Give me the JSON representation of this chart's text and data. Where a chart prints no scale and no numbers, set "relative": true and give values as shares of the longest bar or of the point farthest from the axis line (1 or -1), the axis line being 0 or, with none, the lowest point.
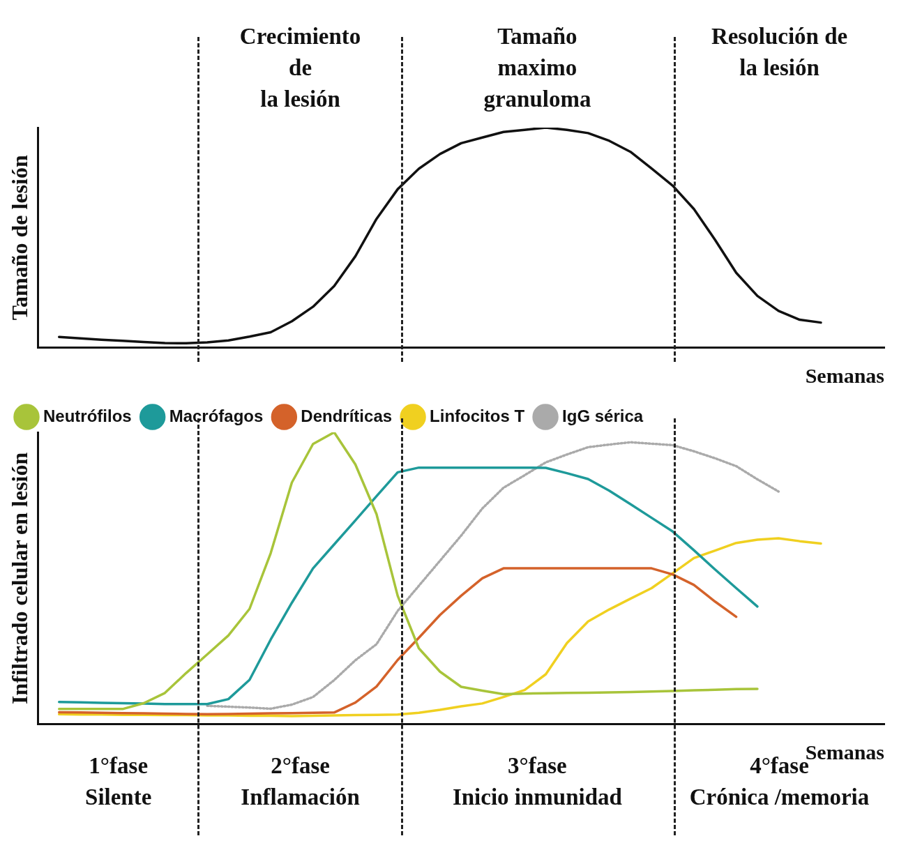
{
  "chart_data": [
    {
      "type": "line",
      "relative": true,
      "ylabel": "Tamaño de lesión",
      "xlabel": "Semanas",
      "legend": false,
      "marker": "none",
      "line_style": "solid",
      "categories": [
        null,
        null,
        null,
        null,
        null,
        null,
        null,
        null,
        null,
        null,
        null,
        null,
        null,
        null,
        null,
        null,
        null,
        null,
        null,
        null,
        null,
        null,
        null,
        null,
        null,
        null,
        null,
        null,
        null,
        null,
        null,
        null,
        null,
        null,
        null,
        null,
        null,
        null,
        null,
        null,
        null
      ],
      "series": [
        {
          "color": "#111111",
          "values": [
            null,
            0.049,
            0.042,
            0.036,
            0.031,
            0.026,
            0.021,
            0.02,
            0.024,
            0.033,
            0.05,
            0.07,
            0.12,
            0.186,
            0.28,
            0.415,
            0.585,
            0.72,
            0.813,
            0.88,
            0.929,
            0.955,
            0.98,
            0.99,
            1.0,
            0.99,
            0.975,
            0.94,
            0.89,
            0.814,
            0.736,
            0.63,
            0.49,
            0.34,
            0.235,
            0.167,
            0.127,
            0.114,
            null,
            null,
            null
          ]
        }
      ],
      "annotations": [
        "Crecimiento\nde\nla lesión",
        "Tamaño\nmaximo\ngranuloma",
        "Resolución de\nla lesión"
      ]
    },
    {
      "type": "line",
      "relative": true,
      "ylabel": "Infiltrado celular en lesión",
      "xlabel": "Semanas",
      "legend": "top left",
      "marker": "none",
      "line_style": "solid",
      "categories": [
        null,
        null,
        null,
        null,
        null,
        null,
        null,
        null,
        null,
        null,
        null,
        null,
        null,
        null,
        null,
        null,
        null,
        null,
        null,
        null,
        null,
        null,
        null,
        null,
        null,
        null,
        null,
        null,
        null,
        null,
        null,
        null,
        null,
        null,
        null,
        null,
        null,
        null,
        null,
        null,
        null
      ],
      "series": [
        {
          "name": "Neutrófilos",
          "color": "#a8c43a",
          "values": [
            null,
            0.052,
            0.052,
            0.052,
            0.052,
            0.072,
            0.107,
            0.175,
            0.239,
            0.304,
            0.395,
            0.586,
            0.828,
            0.96,
            1.0,
            0.89,
            0.72,
            0.44,
            0.26,
            0.18,
            0.128,
            0.115,
            0.103,
            0.105,
            0.106,
            0.107,
            0.108,
            0.109,
            0.11,
            0.112,
            0.114,
            0.116,
            0.118,
            0.12,
            0.121,
            null,
            null,
            null,
            null,
            null,
            null
          ]
        },
        {
          "name": "Macrófagos",
          "color": "#1e9a9a",
          "values": [
            null,
            0.076,
            0.075,
            0.073,
            0.072,
            0.071,
            0.069,
            0.069,
            0.069,
            0.086,
            0.152,
            0.29,
            0.416,
            0.534,
            0.616,
            0.698,
            0.781,
            0.863,
            0.879,
            0.879,
            0.879,
            0.879,
            0.879,
            0.879,
            0.878,
            0.86,
            0.84,
            0.8,
            0.754,
            0.707,
            0.66,
            0.596,
            0.53,
            0.466,
            0.403,
            null,
            null,
            null,
            null,
            null,
            null
          ]
        },
        {
          "name": "Dendríticas",
          "color": "#d4622a",
          "values": [
            null,
            0.041,
            0.04,
            0.039,
            0.038,
            0.037,
            0.036,
            0.035,
            0.034,
            0.035,
            0.036,
            0.037,
            0.038,
            0.039,
            0.04,
            0.074,
            0.129,
            0.22,
            0.296,
            0.374,
            0.44,
            0.5,
            0.534,
            0.534,
            0.534,
            0.534,
            0.534,
            0.534,
            0.534,
            0.534,
            0.513,
            0.477,
            0.42,
            0.368,
            null,
            null,
            null,
            null,
            null,
            null,
            null
          ]
        },
        {
          "name": "Linfocitos T",
          "color": "#f0d020",
          "values": [
            null,
            0.034,
            0.033,
            0.033,
            0.032,
            0.032,
            0.031,
            0.031,
            0.03,
            0.03,
            0.029,
            0.029,
            0.028,
            0.029,
            0.03,
            0.031,
            0.032,
            0.033,
            0.039,
            0.049,
            0.061,
            0.071,
            0.093,
            0.117,
            0.171,
            0.278,
            0.352,
            0.393,
            0.43,
            0.466,
            0.517,
            0.569,
            0.595,
            0.621,
            0.632,
            0.637,
            0.627,
            0.619,
            null,
            null,
            null
          ]
        },
        {
          "name": "IgG sérica",
          "color": "#aaaaaa",
          "line_style": "dotted",
          "values": [
            null,
            null,
            null,
            null,
            null,
            null,
            null,
            null,
            0.063,
            0.06,
            0.057,
            0.053,
            0.067,
            0.093,
            0.151,
            0.219,
            0.274,
            0.388,
            0.474,
            0.56,
            0.646,
            0.739,
            0.81,
            0.853,
            0.897,
            0.924,
            0.949,
            0.958,
            0.966,
            0.961,
            0.956,
            0.935,
            0.911,
            0.884,
            0.839,
            0.797,
            null,
            null,
            null,
            null,
            null
          ]
        }
      ],
      "annotations": [
        "1°fase\nSilente",
        "2°fase\nInflamación",
        "3°fase\nInicio inmunidad",
        "4°fase\nCrónica /memoria"
      ]
    }
  ]
}
